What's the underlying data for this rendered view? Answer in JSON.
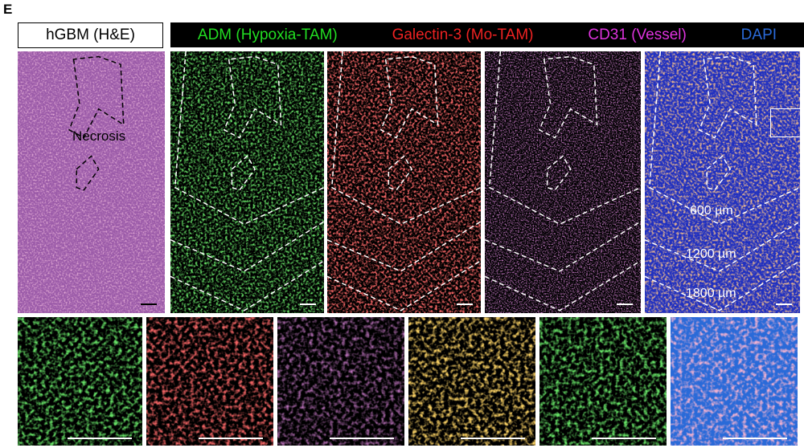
{
  "panel_letter": "E",
  "he_title": "hGBM (H&E)",
  "necrosis_label": "Necrosis",
  "channels": [
    {
      "label": "ADM (Hypoxia-TAM)",
      "color": "#22dd22"
    },
    {
      "label": "Galectin-3 (Mo-TAM)",
      "color": "#ee2222"
    },
    {
      "label": "CD31 (Vessel)",
      "color": "#dd33dd"
    },
    {
      "label": "DAPI",
      "color": "#2a6ad8"
    }
  ],
  "distances": [
    "600 µm",
    "1200 µm",
    "1800 µm"
  ],
  "panel_colors": {
    "he": "#9a5aa8",
    "adm": "#22c022",
    "galectin": "#e02020",
    "cd31": "#c040c0",
    "merge_bg": "#2030c0",
    "dapi": "#2a6ad8"
  }
}
